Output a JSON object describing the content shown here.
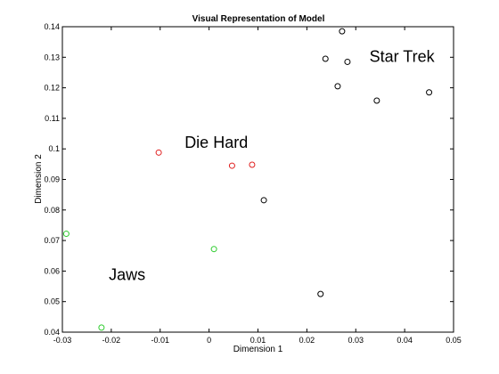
{
  "chart_data": {
    "type": "scatter",
    "title": "Visual Representation of Model",
    "xlabel": "Dimension 1",
    "ylabel": "Dimension 2",
    "xlim": [
      -0.03,
      0.05
    ],
    "ylim": [
      0.04,
      0.14
    ],
    "xticks": [
      -0.03,
      -0.02,
      -0.01,
      0,
      0.01,
      0.02,
      0.03,
      0.04,
      0.05
    ],
    "xtick_labels": [
      "-0.03",
      "-0.02",
      "-0.01",
      "0",
      "0.01",
      "0.02",
      "0.03",
      "0.04",
      "0.05"
    ],
    "yticks": [
      0.04,
      0.05,
      0.06,
      0.07,
      0.08,
      0.09,
      0.1,
      0.11,
      0.12,
      0.13,
      0.14
    ],
    "ytick_labels": [
      "0.04",
      "0.05",
      "0.06",
      "0.07",
      "0.08",
      "0.09",
      "0.1",
      "0.11",
      "0.12",
      "0.13",
      "0.14"
    ],
    "grid": false,
    "marker": "open-circle",
    "series": [
      {
        "color": "#000000",
        "points": [
          {
            "x": 0.0272,
            "y": 0.1385
          },
          {
            "x": 0.0238,
            "y": 0.1295
          },
          {
            "x": 0.0283,
            "y": 0.1285
          },
          {
            "x": 0.0263,
            "y": 0.1205
          },
          {
            "x": 0.0343,
            "y": 0.1158
          },
          {
            "x": 0.045,
            "y": 0.1185
          },
          {
            "x": 0.0112,
            "y": 0.0832
          },
          {
            "x": 0.0228,
            "y": 0.0525
          }
        ]
      },
      {
        "color": "#e02020",
        "points": [
          {
            "x": -0.0103,
            "y": 0.0988
          },
          {
            "x": 0.0047,
            "y": 0.0945
          },
          {
            "x": 0.0088,
            "y": 0.0948
          }
        ]
      },
      {
        "color": "#2ecc2e",
        "points": [
          {
            "x": -0.0292,
            "y": 0.0722
          },
          {
            "x": 0.001,
            "y": 0.0672
          },
          {
            "x": -0.022,
            "y": 0.0415
          }
        ]
      }
    ],
    "annotations": [
      {
        "text": "Star Trek",
        "x": 0.0328,
        "y": 0.1285
      },
      {
        "text": "Die Hard",
        "x": -0.005,
        "y": 0.1003
      },
      {
        "text": "Jaws",
        "x": -0.0205,
        "y": 0.057
      }
    ]
  }
}
